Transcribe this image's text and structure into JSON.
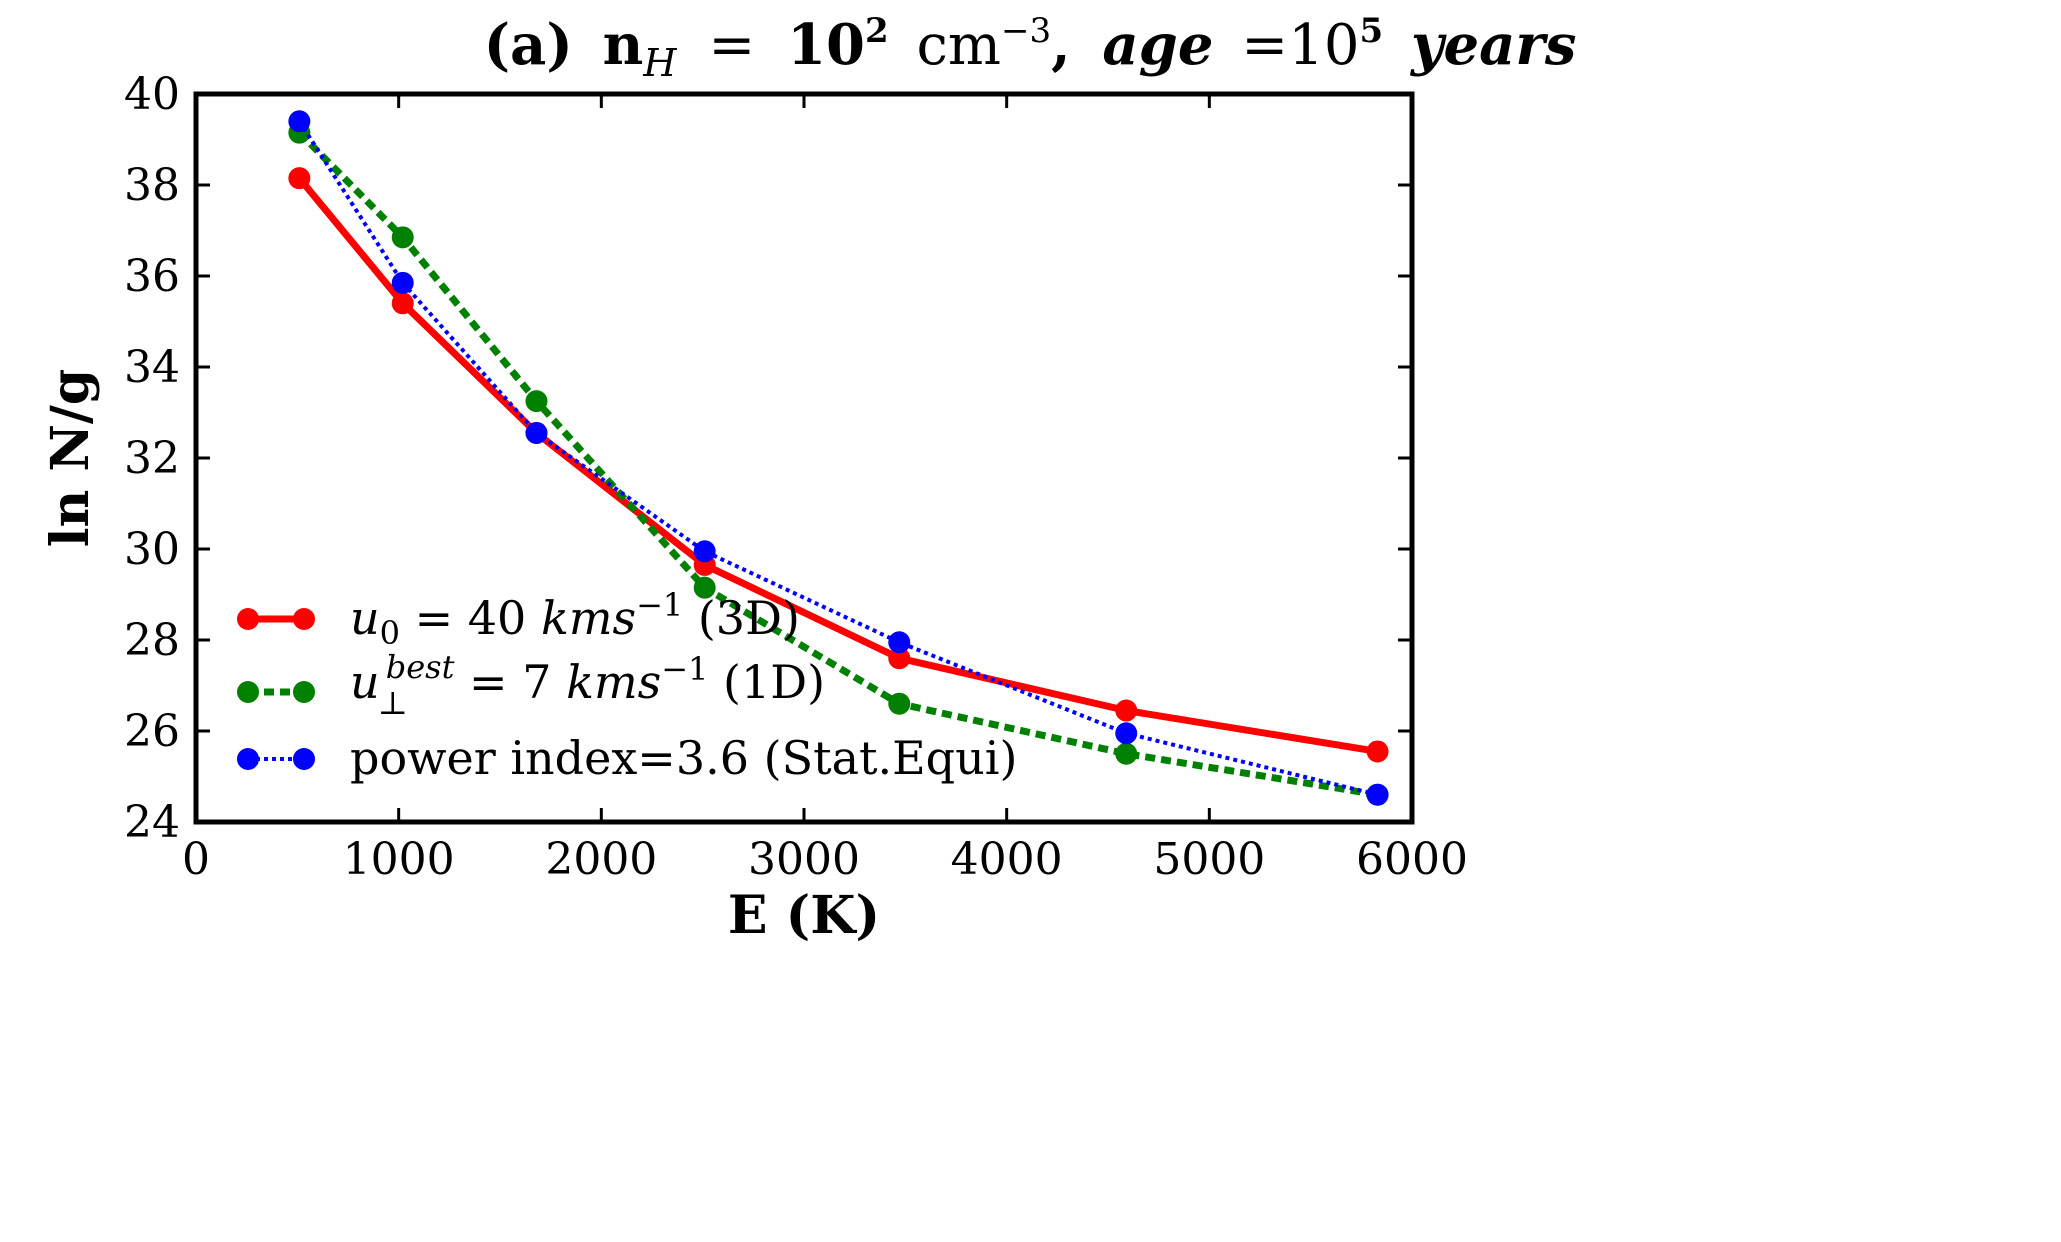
{
  "chart_data": {
    "type": "line",
    "title": {
      "label": "(a)",
      "n_symbol": "n",
      "n_sub": "H",
      "eq1": "=",
      "n_base": "10",
      "n_exp": "2",
      "n_unit": "cm",
      "n_unit_exp": "−3",
      "sep": ",",
      "age_word": "age",
      "eq2": "=",
      "age_base": "10",
      "age_exp": "5",
      "age_unit": "years"
    },
    "xlabel": "E (K)",
    "ylabel": "ln N/g",
    "xlim": [
      0,
      6000
    ],
    "ylim": [
      24,
      40
    ],
    "xticks": [
      0,
      1000,
      2000,
      3000,
      4000,
      5000,
      6000
    ],
    "yticks": [
      24,
      26,
      28,
      30,
      32,
      34,
      36,
      38,
      40
    ],
    "series": [
      {
        "name": "u0 = 40 kms-1 (3D)",
        "color": "#ff0000",
        "line_style": "solid",
        "x": [
          510,
          1020,
          1680,
          2510,
          3470,
          4590,
          5830
        ],
        "y": [
          38.15,
          35.4,
          32.55,
          29.65,
          27.6,
          26.45,
          25.55
        ],
        "legend": {
          "sym": "u",
          "sub": "0",
          "sup": "",
          "rest": " = 40 ",
          "unit": "kms",
          "unit_exp": "−1",
          "tail": " (3D)"
        }
      },
      {
        "name": "u⊥best = 7 kms-1 (1D)",
        "color": "#008000",
        "line_style": "dashed",
        "x": [
          510,
          1020,
          1680,
          2510,
          3470,
          4590,
          5830
        ],
        "y": [
          39.15,
          36.85,
          33.25,
          29.15,
          26.6,
          25.5,
          24.6
        ],
        "legend": {
          "sym": "u",
          "sub": "⊥",
          "sup": "best",
          "rest": " = 7 ",
          "unit": "kms",
          "unit_exp": "−1",
          "tail": " (1D)"
        }
      },
      {
        "name": "power index=3.6 (Stat.Equi)",
        "color": "#0000ff",
        "line_style": "dotted",
        "x": [
          510,
          1020,
          1680,
          2510,
          3470,
          4590,
          5830
        ],
        "y": [
          39.4,
          35.85,
          32.55,
          29.95,
          27.95,
          25.95,
          24.6
        ],
        "legend": {
          "plain": "power index=3.6 (Stat.Equi)"
        }
      }
    ],
    "legend_position": "bottom-left"
  }
}
